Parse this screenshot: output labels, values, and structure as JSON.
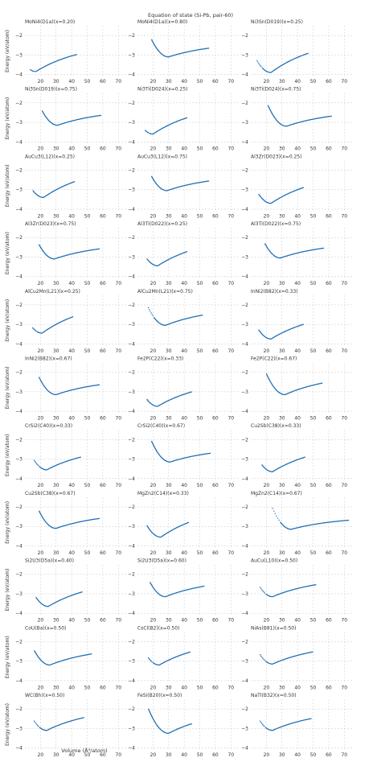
{
  "figure": {
    "suptitle": "Equation of state (Si-Pb, pair-60)",
    "xlabel": "Volume (Å³/atom)",
    "ylabel": "Energy (eV/atom)"
  },
  "axes": {
    "xticks": [
      20,
      30,
      40,
      50,
      60,
      70
    ],
    "yticks": [
      -2,
      -3,
      -4
    ],
    "xlim": [
      10,
      75
    ],
    "ylim": [
      -4.1,
      -1.5
    ]
  },
  "style": {
    "line_color": "#1f6fb4",
    "grid_color": "#c8c8c8"
  },
  "chart_data": [
    {
      "type": "line",
      "title": "MoNi4(D1a)(x=0.20)",
      "v0": 17.0,
      "e0": -3.85,
      "vmin": 13.5,
      "vmax": 43.5,
      "head_dotted": true,
      "tail_step": 2.5
    },
    {
      "type": "line",
      "title": "MoNi4(D1a)(x=0.80)",
      "v0": 30.0,
      "e0": -3.1,
      "vmin": 19.0,
      "vmax": 56.0,
      "head_dotted": false,
      "tail_step": 1.3
    },
    {
      "type": "line",
      "title": "Ni3Sn(D019)(x=0.25)",
      "v0": 23.0,
      "e0": -3.9,
      "vmin": 14.0,
      "vmax": 47.0,
      "head_dotted": true,
      "tail_step": 3.0
    },
    {
      "type": "line",
      "title": "Ni3Sn(D019)(x=0.75)",
      "v0": 31.0,
      "e0": -3.15,
      "vmin": 21.0,
      "vmax": 59.0,
      "head_dotted": false,
      "tail_step": 1.4
    },
    {
      "type": "line",
      "title": "Ni3Ti(D024)(x=0.25)",
      "v0": 20.0,
      "e0": -3.6,
      "vmin": 15.0,
      "vmax": 42.0,
      "head_dotted": true,
      "tail_step": 2.7
    },
    {
      "type": "line",
      "title": "Ni3Ti(D024)(x=0.75)",
      "v0": 33.0,
      "e0": -3.2,
      "vmin": 21.0,
      "vmax": 62.0,
      "head_dotted": false,
      "tail_step": 1.4
    },
    {
      "type": "line",
      "title": "AuCu3(L12)(x=0.25)",
      "v0": 22.0,
      "e0": -3.4,
      "vmin": 15.0,
      "vmax": 42.0,
      "head_dotted": false,
      "tail_step": 2.8
    },
    {
      "type": "line",
      "title": "AuCu3(L12)(x=0.75)",
      "v0": 29.0,
      "e0": -3.05,
      "vmin": 19.0,
      "vmax": 56.0,
      "head_dotted": false,
      "tail_step": 1.4
    },
    {
      "type": "line",
      "title": "Al3Zr(D023)(x=0.25)",
      "v0": 23.0,
      "e0": -3.7,
      "vmin": 15.0,
      "vmax": 44.0,
      "head_dotted": false,
      "tail_step": 2.7
    },
    {
      "type": "line",
      "title": "Al3Zr(D023)(x=0.75)",
      "v0": 29.0,
      "e0": -3.1,
      "vmin": 19.0,
      "vmax": 58.0,
      "head_dotted": false,
      "tail_step": 1.4
    },
    {
      "type": "line",
      "title": "Al3Ti(D022)(x=0.25)",
      "v0": 23.0,
      "e0": -3.45,
      "vmin": 16.0,
      "vmax": 42.0,
      "head_dotted": false,
      "tail_step": 2.6
    },
    {
      "type": "line",
      "title": "Al3Ti(D022)(x=0.75)",
      "v0": 29.0,
      "e0": -3.05,
      "vmin": 19.0,
      "vmax": 57.0,
      "head_dotted": false,
      "tail_step": 1.4
    },
    {
      "type": "line",
      "title": "AlCu2Mn(L21)(x=0.25)",
      "v0": 21.0,
      "e0": -3.45,
      "vmin": 15.0,
      "vmax": 41.0,
      "head_dotted": true,
      "tail_step": 2.9
    },
    {
      "type": "line",
      "title": "AlCu2Mn(L21)(x=0.75)",
      "v0": 28.0,
      "e0": -3.05,
      "vmin": 17.0,
      "vmax": 52.0,
      "head_dotted": true,
      "tail_step": 1.6
    },
    {
      "type": "line",
      "title": "InNi2(B82)(x=0.33)",
      "v0": 23.0,
      "e0": -3.75,
      "vmin": 15.0,
      "vmax": 44.0,
      "head_dotted": false,
      "tail_step": 2.5
    },
    {
      "type": "line",
      "title": "InNi2(B82)(x=0.67)",
      "v0": 30.0,
      "e0": -3.15,
      "vmin": 19.0,
      "vmax": 58.0,
      "head_dotted": false,
      "tail_step": 1.4
    },
    {
      "type": "line",
      "title": "Fe2P(C22)(x=0.33)",
      "v0": 23.0,
      "e0": -3.75,
      "vmin": 16.0,
      "vmax": 45.0,
      "head_dotted": false,
      "tail_step": 2.4
    },
    {
      "type": "line",
      "title": "Fe2P(C22)(x=0.67)",
      "v0": 32.0,
      "e0": -3.15,
      "vmin": 20.0,
      "vmax": 56.0,
      "head_dotted": false,
      "tail_step": 1.8
    },
    {
      "type": "line",
      "title": "CrSi2(C40)(x=0.33)",
      "v0": 24.0,
      "e0": -3.55,
      "vmin": 16.0,
      "vmax": 46.0,
      "head_dotted": true,
      "tail_step": 2.1
    },
    {
      "type": "line",
      "title": "CrSi2(C40)(x=0.67)",
      "v0": 31.0,
      "e0": -3.15,
      "vmin": 19.0,
      "vmax": 57.0,
      "head_dotted": false,
      "tail_step": 1.3
    },
    {
      "type": "line",
      "title": "Cu2Sb(C38)(x=0.33)",
      "v0": 24.0,
      "e0": -3.65,
      "vmin": 17.0,
      "vmax": 45.0,
      "head_dotted": false,
      "tail_step": 2.5
    },
    {
      "type": "line",
      "title": "Cu2Sb(C38)(x=0.67)",
      "v0": 30.0,
      "e0": -3.1,
      "vmin": 19.0,
      "vmax": 58.0,
      "head_dotted": false,
      "tail_step": 1.4
    },
    {
      "type": "line",
      "title": "MgZn2(C14)(x=0.33)",
      "v0": 25.0,
      "e0": -3.55,
      "vmin": 16.0,
      "vmax": 43.0,
      "head_dotted": false,
      "tail_step": 2.8
    },
    {
      "type": "line",
      "title": "MgZn2(C14)(x=0.67)",
      "v0": 36.0,
      "e0": -3.15,
      "vmin": 24.0,
      "vmax": 73.0,
      "head_dotted": true,
      "tail_step": 1.1
    },
    {
      "type": "line",
      "title": "Si2U3(D5a)(x=0.40)",
      "v0": 25.0,
      "e0": -3.65,
      "vmin": 17.0,
      "vmax": 47.0,
      "head_dotted": false,
      "tail_step": 2.4
    },
    {
      "type": "line",
      "title": "Si2U3(D5a)(x=0.60)",
      "v0": 28.0,
      "e0": -3.15,
      "vmin": 18.0,
      "vmax": 53.0,
      "head_dotted": false,
      "tail_step": 1.6
    },
    {
      "type": "line",
      "title": "AuCu(L10)(x=0.50)",
      "v0": 24.0,
      "e0": -3.15,
      "vmin": 16.0,
      "vmax": 52.0,
      "head_dotted": true,
      "tail_step": 1.7
    },
    {
      "type": "line",
      "title": "CoU(Ba)(x=0.50)",
      "v0": 26.0,
      "e0": -3.2,
      "vmin": 16.0,
      "vmax": 53.0,
      "head_dotted": false,
      "tail_step": 1.6
    },
    {
      "type": "line",
      "title": "CsCl(B2)(x=0.50)",
      "v0": 24.0,
      "e0": -3.2,
      "vmin": 17.0,
      "vmax": 44.0,
      "head_dotted": true,
      "tail_step": 2.3
    },
    {
      "type": "line",
      "title": "NiAs(B81)(x=0.50)",
      "v0": 24.0,
      "e0": -3.15,
      "vmin": 16.0,
      "vmax": 50.0,
      "head_dotted": true,
      "tail_step": 1.8
    },
    {
      "type": "line",
      "title": "WC(Bh)(x=0.50)",
      "v0": 24.0,
      "e0": -3.1,
      "vmin": 16.0,
      "vmax": 48.0,
      "head_dotted": true,
      "tail_step": 2.0
    },
    {
      "type": "line",
      "title": "FeSi(B20)(x=0.50)",
      "v0": 30.0,
      "e0": -3.25,
      "vmin": 17.0,
      "vmax": 45.0,
      "head_dotted": false,
      "tail_step": 2.1
    },
    {
      "type": "line",
      "title": "NaTl(B32)(x=0.50)",
      "v0": 24.0,
      "e0": -3.1,
      "vmin": 16.0,
      "vmax": 49.0,
      "head_dotted": true,
      "tail_step": 1.8
    }
  ]
}
